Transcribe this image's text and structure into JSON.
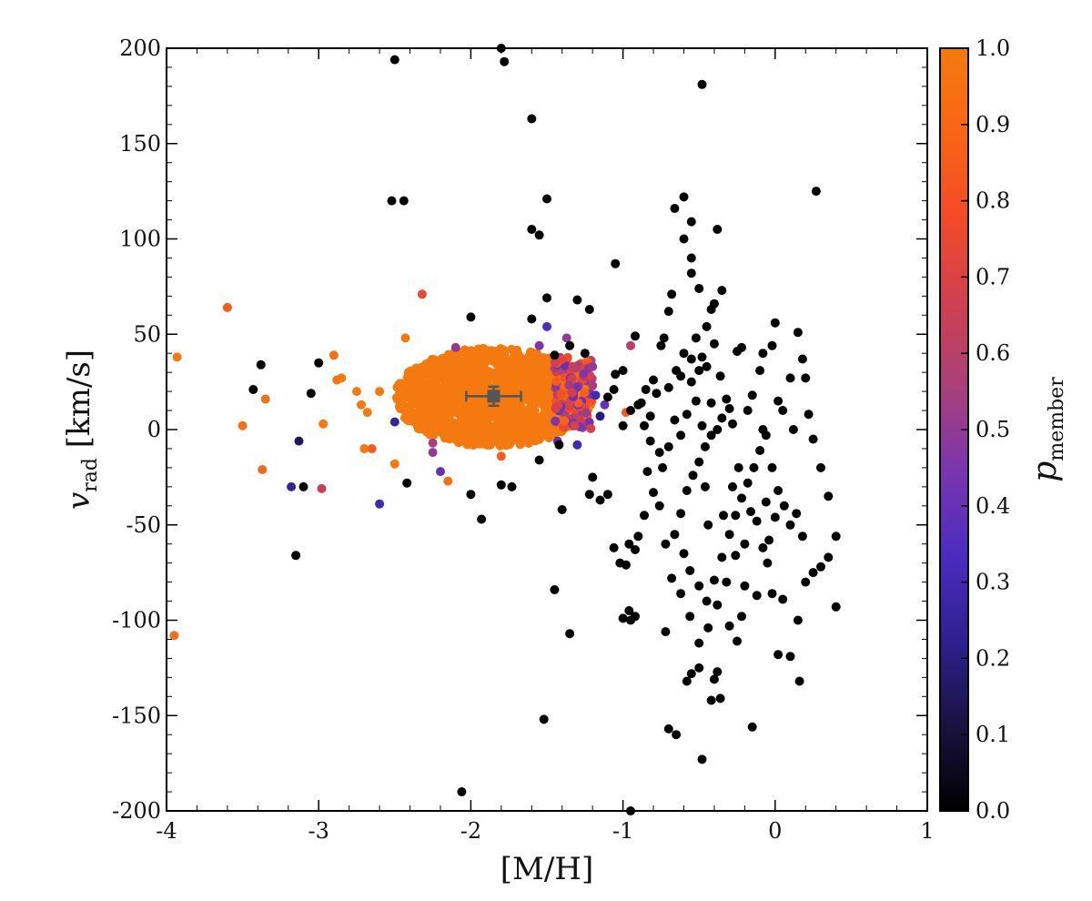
{
  "chart_data": {
    "type": "scatter",
    "xlabel": "[M/H]",
    "ylabel": "v_rad [km/s]",
    "ylabel_main": "v",
    "ylabel_sub": "rad",
    "ylabel_unit": " [km/s]",
    "xlim": [
      -4,
      1
    ],
    "ylim": [
      -200,
      200
    ],
    "x_ticks": [
      -4,
      -3,
      -2,
      -1,
      0,
      1
    ],
    "x_tick_labels": [
      "-4",
      "-3",
      "-2",
      "-1",
      "0",
      "1"
    ],
    "y_ticks": [
      -200,
      -150,
      -100,
      -50,
      0,
      50,
      100,
      150,
      200
    ],
    "y_tick_labels": [
      "-200",
      "-150",
      "-100",
      "-50",
      "0",
      "50",
      "100",
      "150",
      "200"
    ],
    "grid": false,
    "colorbar": {
      "label": "p_member",
      "label_main": "p",
      "label_sub": "member",
      "range": [
        0,
        1
      ],
      "ticks": [
        0,
        0.1,
        0.2,
        0.3,
        0.4,
        0.5,
        0.6,
        0.7,
        0.8,
        0.9,
        1.0
      ],
      "tick_labels": [
        "0.0",
        "0.1",
        "0.2",
        "0.3",
        "0.4",
        "0.5",
        "0.6",
        "0.7",
        "0.8",
        "0.9",
        "1.0"
      ],
      "colors": [
        "#000000",
        "#1a1240",
        "#2e2090",
        "#4a2cc0",
        "#7a35b0",
        "#a8407a",
        "#d04050",
        "#f34a28",
        "#f96515",
        "#f47a10"
      ]
    },
    "member_cloud": {
      "description_free": true,
      "x_range": [
        -2.55,
        -1.25
      ],
      "y_range": [
        -10,
        42
      ],
      "center": [
        -1.85,
        17
      ],
      "p_member": 1.0
    },
    "mean_marker": {
      "x": -1.85,
      "y": 17.5,
      "x_err": 0.18,
      "y_err": 5,
      "color": "#555555"
    },
    "points": [
      [
        -3.93,
        38,
        1.0
      ],
      [
        -3.6,
        64,
        0.85
      ],
      [
        -3.95,
        -108,
        0.95
      ],
      [
        -3.38,
        34,
        0.0
      ],
      [
        -3.43,
        21,
        0.0
      ],
      [
        -3.35,
        16,
        0.95
      ],
      [
        -3.37,
        -21,
        0.9
      ],
      [
        -3.5,
        2,
        0.95
      ],
      [
        -3.18,
        -30,
        0.25
      ],
      [
        -3.15,
        -66,
        0.0
      ],
      [
        -3.1,
        -30,
        0.0
      ],
      [
        -3.13,
        -6,
        0.15
      ],
      [
        -3.05,
        19,
        0.0
      ],
      [
        -3.0,
        35,
        0.0
      ],
      [
        -2.98,
        -31,
        0.65
      ],
      [
        -2.97,
        3,
        1.0
      ],
      [
        -2.9,
        39,
        0.95
      ],
      [
        -2.88,
        26,
        0.95
      ],
      [
        -2.85,
        27,
        1.0
      ],
      [
        -2.75,
        20,
        1.0
      ],
      [
        -2.72,
        13,
        1.0
      ],
      [
        -2.68,
        9,
        1.0
      ],
      [
        -2.65,
        -10,
        0.85
      ],
      [
        -2.7,
        -10,
        1.0
      ],
      [
        -2.6,
        20,
        1.0
      ],
      [
        -2.6,
        -39,
        0.3
      ],
      [
        -2.5,
        -18,
        1.0
      ],
      [
        -2.42,
        -28,
        0.0
      ],
      [
        -2.5,
        4,
        0.25
      ],
      [
        -2.5,
        194,
        0.0
      ],
      [
        -2.52,
        120,
        0.0
      ],
      [
        -2.44,
        120,
        0.0
      ],
      [
        -2.43,
        48,
        1.0
      ],
      [
        -2.32,
        71,
        0.75
      ],
      [
        -2.25,
        -12,
        0.5
      ],
      [
        -2.2,
        -22,
        0.4
      ],
      [
        -2.25,
        -7,
        0.55
      ],
      [
        -2.15,
        -27,
        0.95
      ],
      [
        -2.1,
        43,
        0.5
      ],
      [
        -2.0,
        59,
        0.0
      ],
      [
        -2.0,
        -34,
        0.0
      ],
      [
        -1.93,
        -47,
        0.0
      ],
      [
        -1.8,
        -14,
        0.85
      ],
      [
        -1.78,
        193,
        0.0
      ],
      [
        -1.8,
        -29,
        0.0
      ],
      [
        -1.73,
        -30,
        0.0
      ],
      [
        -1.6,
        163,
        0.0
      ],
      [
        -1.6,
        105,
        0.0
      ],
      [
        -1.55,
        102,
        0.0
      ],
      [
        -1.6,
        58,
        0.0
      ],
      [
        -1.55,
        44,
        0.45
      ],
      [
        -1.55,
        -16,
        0.0
      ],
      [
        -1.5,
        121,
        0.0
      ],
      [
        -1.5,
        69,
        0.0
      ],
      [
        -1.5,
        54,
        0.35
      ],
      [
        -1.45,
        39,
        0.0
      ],
      [
        -1.43,
        -6,
        0.4
      ],
      [
        -1.42,
        -8,
        0.0
      ],
      [
        -1.4,
        -42,
        0.0
      ],
      [
        -1.37,
        48,
        0.5
      ],
      [
        -1.35,
        44,
        0.0
      ],
      [
        -1.35,
        -107,
        0.0
      ],
      [
        -1.3,
        -8,
        0.3
      ],
      [
        -1.3,
        68,
        0.0
      ],
      [
        -1.25,
        40,
        0.0
      ],
      [
        -1.2,
        33,
        0.5
      ],
      [
        -1.2,
        23,
        0.55
      ],
      [
        -1.22,
        63,
        0.0
      ],
      [
        -1.18,
        18,
        0.3
      ],
      [
        -1.15,
        7,
        0.2
      ],
      [
        -1.12,
        13,
        0.4
      ],
      [
        -1.1,
        17,
        0.0
      ],
      [
        -1.06,
        21,
        0.0
      ],
      [
        -1.05,
        29,
        0.0
      ],
      [
        -1.05,
        87,
        0.0
      ],
      [
        -1.0,
        31,
        0.0
      ],
      [
        -1.0,
        2,
        0.0
      ],
      [
        -0.98,
        9,
        0.85
      ],
      [
        -0.95,
        10,
        0.0
      ],
      [
        -0.95,
        44,
        0.6
      ],
      [
        -0.92,
        49,
        0.0
      ],
      [
        -0.9,
        13,
        0.0
      ],
      [
        -0.88,
        14,
        0.0
      ],
      [
        -0.85,
        21,
        0.0
      ],
      [
        -0.82,
        7,
        0.0
      ],
      [
        -0.8,
        26,
        0.0
      ],
      [
        -0.78,
        19,
        0.0
      ],
      [
        -0.75,
        44,
        0.0
      ],
      [
        -0.73,
        48,
        0.0
      ],
      [
        -0.7,
        22,
        0.0
      ],
      [
        -0.7,
        62,
        0.0
      ],
      [
        -0.68,
        71,
        0.0
      ],
      [
        -0.66,
        116,
        0.0
      ],
      [
        -0.6,
        122,
        0.0
      ],
      [
        -0.6,
        100,
        0.0
      ],
      [
        -0.55,
        109,
        0.0
      ],
      [
        -0.55,
        90,
        0.0
      ],
      [
        -0.55,
        82,
        0.0
      ],
      [
        -0.5,
        74,
        0.0
      ],
      [
        -0.48,
        181,
        0.0
      ],
      [
        -0.45,
        54,
        0.0
      ],
      [
        -0.42,
        63,
        0.0
      ],
      [
        -0.4,
        66,
        0.0
      ],
      [
        -0.38,
        105,
        0.0
      ],
      [
        -0.35,
        73,
        0.0
      ],
      [
        -0.4,
        45,
        0.0
      ],
      [
        -0.55,
        37,
        0.0
      ],
      [
        -0.6,
        40,
        0.0
      ],
      [
        -0.65,
        31,
        0.0
      ],
      [
        -0.62,
        28,
        0.0
      ],
      [
        -0.55,
        25,
        0.0
      ],
      [
        -0.5,
        31,
        0.0
      ],
      [
        -0.48,
        38,
        0.0
      ],
      [
        -0.45,
        33,
        0.0
      ],
      [
        -0.42,
        14,
        0.0
      ],
      [
        -0.52,
        15,
        0.0
      ],
      [
        -0.58,
        8,
        0.0
      ],
      [
        -0.62,
        -3,
        0.0
      ],
      [
        -0.66,
        5,
        0.0
      ],
      [
        -0.7,
        -9,
        0.0
      ],
      [
        -0.74,
        -20,
        0.0
      ],
      [
        -0.76,
        -40,
        0.0
      ],
      [
        -0.8,
        -33,
        0.0
      ],
      [
        -0.84,
        -22,
        0.0
      ],
      [
        -0.86,
        -45,
        0.0
      ],
      [
        -0.9,
        -56,
        0.0
      ],
      [
        -0.92,
        -63,
        0.0
      ],
      [
        -0.96,
        -60,
        0.0
      ],
      [
        -0.98,
        -71,
        0.0
      ],
      [
        -1.02,
        -70,
        0.0
      ],
      [
        -1.06,
        -62,
        0.0
      ],
      [
        -1.1,
        -34,
        0.0
      ],
      [
        -1.15,
        -37,
        0.0
      ],
      [
        -1.2,
        -25,
        0.0
      ],
      [
        -1.22,
        -34,
        0.0
      ],
      [
        -1.0,
        -99,
        0.0
      ],
      [
        -0.96,
        -95,
        0.0
      ],
      [
        -0.95,
        -100,
        0.0
      ],
      [
        -0.92,
        -98,
        0.0
      ],
      [
        -0.72,
        -106,
        0.0
      ],
      [
        -0.7,
        -157,
        0.0
      ],
      [
        -0.65,
        -160,
        0.0
      ],
      [
        -0.58,
        -132,
        0.0
      ],
      [
        -0.55,
        -128,
        0.0
      ],
      [
        -0.5,
        -125,
        0.0
      ],
      [
        -0.48,
        -173,
        0.0
      ],
      [
        -0.42,
        -142,
        0.0
      ],
      [
        -0.4,
        -131,
        0.0
      ],
      [
        -0.38,
        -127,
        0.0
      ],
      [
        -0.36,
        -141,
        0.0
      ],
      [
        -0.3,
        -103,
        0.0
      ],
      [
        -0.25,
        -111,
        0.0
      ],
      [
        -0.22,
        -98,
        0.0
      ],
      [
        -0.2,
        -82,
        0.0
      ],
      [
        -0.15,
        -156,
        0.0
      ],
      [
        -0.12,
        -87,
        0.0
      ],
      [
        -0.05,
        -70,
        0.0
      ],
      [
        -0.02,
        -86,
        0.0
      ],
      [
        0.02,
        -118,
        0.0
      ],
      [
        0.05,
        -89,
        0.0
      ],
      [
        0.1,
        -119,
        0.0
      ],
      [
        0.15,
        -100,
        0.0
      ],
      [
        0.16,
        -132,
        0.0
      ],
      [
        0.2,
        -80,
        0.0
      ],
      [
        0.25,
        -75,
        0.0
      ],
      [
        0.3,
        -72,
        0.0
      ],
      [
        0.35,
        -67,
        0.0
      ],
      [
        0.4,
        -56,
        0.0
      ],
      [
        0.4,
        -93,
        0.0
      ],
      [
        0.35,
        -35,
        0.0
      ],
      [
        0.3,
        -20,
        0.0
      ],
      [
        0.25,
        -5,
        0.0
      ],
      [
        0.22,
        8,
        0.0
      ],
      [
        0.2,
        27,
        0.0
      ],
      [
        0.18,
        37,
        0.0
      ],
      [
        0.15,
        51,
        0.0
      ],
      [
        0.1,
        27,
        0.0
      ],
      [
        0.05,
        10,
        0.0
      ],
      [
        0.02,
        15,
        0.0
      ],
      [
        0.0,
        56,
        0.0
      ],
      [
        -0.02,
        44,
        0.0
      ],
      [
        -0.08,
        40,
        0.0
      ],
      [
        -0.1,
        31,
        0.0
      ],
      [
        -0.15,
        18,
        0.0
      ],
      [
        -0.18,
        10,
        0.0
      ],
      [
        -0.22,
        43,
        0.0
      ],
      [
        -0.25,
        41,
        0.0
      ],
      [
        -0.3,
        11,
        0.0
      ],
      [
        -0.32,
        16,
        0.0
      ],
      [
        -0.35,
        6,
        0.0
      ],
      [
        -0.38,
        0,
        0.0
      ],
      [
        -0.42,
        -3,
        0.0
      ],
      [
        -0.46,
        -9,
        0.0
      ],
      [
        -0.5,
        -17,
        0.0
      ],
      [
        -0.54,
        -24,
        0.0
      ],
      [
        -0.58,
        -32,
        0.0
      ],
      [
        -0.62,
        -44,
        0.0
      ],
      [
        -0.66,
        -55,
        0.0
      ],
      [
        -0.6,
        -65,
        0.0
      ],
      [
        -0.56,
        -74,
        0.0
      ],
      [
        -0.5,
        -82,
        0.0
      ],
      [
        -0.45,
        -90,
        0.0
      ],
      [
        -0.4,
        -79,
        0.0
      ],
      [
        -0.35,
        -67,
        0.0
      ],
      [
        -0.3,
        -55,
        0.0
      ],
      [
        -0.26,
        -45,
        0.0
      ],
      [
        -0.22,
        -36,
        0.0
      ],
      [
        -0.18,
        -28,
        0.0
      ],
      [
        -0.14,
        -20,
        0.0
      ],
      [
        -0.1,
        -11,
        0.0
      ],
      [
        -0.06,
        -3,
        0.0
      ],
      [
        -0.02,
        -20,
        0.0
      ],
      [
        0.02,
        -32,
        0.0
      ],
      [
        0.06,
        -40,
        0.0
      ],
      [
        0.1,
        -50,
        0.0
      ],
      [
        0.14,
        -44,
        0.0
      ],
      [
        0.18,
        -56,
        0.0
      ],
      [
        -0.46,
        -30,
        0.0
      ],
      [
        -0.44,
        -50,
        0.0
      ],
      [
        -0.34,
        -45,
        0.0
      ],
      [
        -0.28,
        -30,
        0.0
      ],
      [
        -0.24,
        -20,
        0.0
      ],
      [
        -0.16,
        -43,
        0.0
      ],
      [
        -0.12,
        -48,
        0.0
      ],
      [
        -0.06,
        -38,
        0.0
      ],
      [
        -0.04,
        -58,
        0.0
      ],
      [
        0.0,
        -46,
        0.0
      ],
      [
        -0.08,
        -62,
        0.0
      ],
      [
        -0.2,
        -60,
        0.0
      ],
      [
        -0.26,
        -66,
        0.0
      ],
      [
        -0.32,
        -80,
        0.0
      ],
      [
        -0.38,
        -92,
        0.0
      ],
      [
        -0.44,
        -104,
        0.0
      ],
      [
        -0.5,
        -112,
        0.0
      ],
      [
        -0.56,
        -98,
        0.0
      ],
      [
        -0.62,
        -86,
        0.0
      ],
      [
        -0.68,
        -78,
        0.0
      ],
      [
        -0.72,
        -60,
        0.0
      ],
      [
        -0.76,
        -12,
        0.0
      ],
      [
        -0.82,
        -6,
        0.0
      ],
      [
        -0.86,
        2,
        0.0
      ],
      [
        -0.48,
        2,
        0.0
      ],
      [
        -0.28,
        3,
        0.0
      ],
      [
        -0.08,
        0,
        0.0
      ],
      [
        0.12,
        0,
        0.0
      ],
      [
        -0.36,
        28,
        0.0
      ],
      [
        -0.52,
        48,
        0.0
      ],
      [
        0.27,
        125,
        0.0
      ],
      [
        -2.06,
        -190,
        0.0
      ],
      [
        -1.52,
        -152,
        0.0
      ],
      [
        -1.45,
        -84,
        0.0
      ],
      [
        -0.95,
        -200,
        0.0
      ],
      [
        -1.8,
        200,
        0.0
      ]
    ]
  }
}
